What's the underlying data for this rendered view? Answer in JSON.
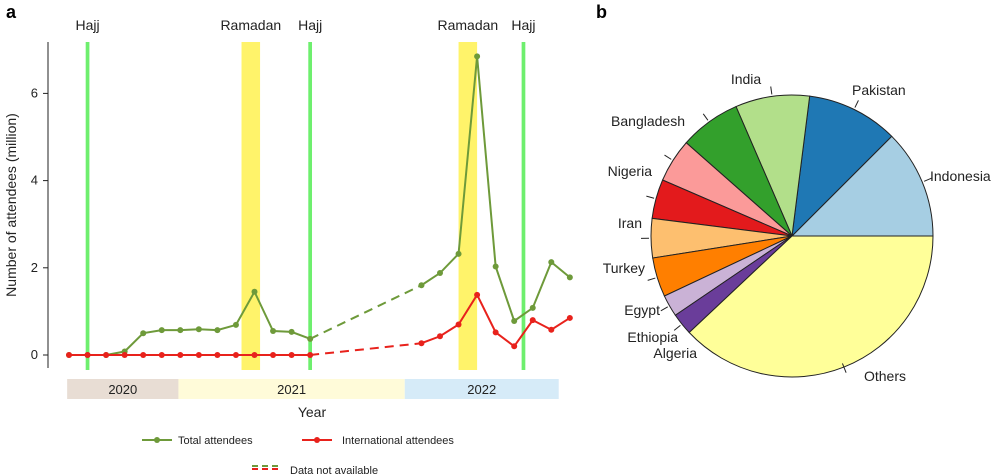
{
  "chart_data": [
    {
      "panel": "a",
      "type": "line",
      "ylabel": "Number of attendees (million)",
      "xlabel": "Year",
      "ylim": [
        0,
        7.3
      ],
      "yticks": [
        "0",
        "2",
        "4",
        "6"
      ],
      "ytick_values": [
        0,
        2,
        4,
        6
      ],
      "x_index_range": [
        0,
        26.5
      ],
      "years": [
        {
          "label": "2020",
          "start": -0.1,
          "end": 5.9,
          "color": "#e8ddd4"
        },
        {
          "label": "2021",
          "start": 5.9,
          "end": 18.1,
          "color": "#fffbd9"
        },
        {
          "label": "2022",
          "start": 18.1,
          "end": 26.4,
          "color": "#d6ebf8"
        }
      ],
      "events": [
        {
          "label": "Hajj",
          "type": "hajj",
          "start": 0.9,
          "end": 1.1
        },
        {
          "label": "Ramadan",
          "type": "ramadan",
          "start": 9.3,
          "end": 10.3
        },
        {
          "label": "Hajj",
          "type": "hajj",
          "start": 12.9,
          "end": 13.1
        },
        {
          "label": "Ramadan",
          "type": "ramadan",
          "start": 21.0,
          "end": 22.0
        },
        {
          "label": "Hajj",
          "type": "hajj",
          "start": 24.4,
          "end": 24.6
        }
      ],
      "series": [
        {
          "name": "Total attendees",
          "color": "#6e9a3a",
          "x": [
            0,
            1,
            2,
            3,
            4,
            5,
            6,
            7,
            8,
            9,
            10,
            11,
            12,
            13,
            19,
            20,
            21,
            22,
            23,
            24,
            25,
            26,
            27
          ],
          "values": [
            0.0,
            0.0,
            0.0,
            0.08,
            0.5,
            0.57,
            0.57,
            0.59,
            0.57,
            0.69,
            1.45,
            0.55,
            0.53,
            0.37,
            1.6,
            1.88,
            2.32,
            6.85,
            2.03,
            0.78,
            1.08,
            2.13,
            1.78
          ],
          "gap_after_index": 13
        },
        {
          "name": "International attendees",
          "color": "#e8221c",
          "x": [
            0,
            1,
            2,
            3,
            4,
            5,
            6,
            7,
            8,
            9,
            10,
            11,
            12,
            13,
            19,
            20,
            21,
            22,
            23,
            24,
            25,
            26,
            27
          ],
          "values": [
            0,
            0,
            0,
            0,
            0,
            0,
            0,
            0,
            0,
            0,
            0,
            0,
            0,
            0,
            0.27,
            0.43,
            0.7,
            1.38,
            0.52,
            0.2,
            0.8,
            0.58,
            0.85
          ],
          "gap_after_index": 13
        }
      ],
      "legend": {
        "total_label": "Total attendees",
        "international_label": "International attendees",
        "na_label": "Data not available"
      }
    },
    {
      "panel": "b",
      "type": "pie",
      "slices": [
        {
          "label": "Indonesia",
          "value": 12.5,
          "color": "#a6cee3"
        },
        {
          "label": "Pakistan",
          "value": 10.5,
          "color": "#1f78b4"
        },
        {
          "label": "India",
          "value": 8.5,
          "color": "#b2df8a"
        },
        {
          "label": "Bangladesh",
          "value": 7.0,
          "color": "#33a02c"
        },
        {
          "label": "Nigeria",
          "value": 5.0,
          "color": "#fb9a99"
        },
        {
          "label": "Iran",
          "value": 4.5,
          "color": "#e31a1c"
        },
        {
          "label": "Turkey",
          "value": 4.5,
          "color": "#fdbf6f"
        },
        {
          "label": "Egypt",
          "value": 4.5,
          "color": "#ff7f00"
        },
        {
          "label": "Ethiopia",
          "value": 2.5,
          "color": "#cab2d6"
        },
        {
          "label": "Algeria",
          "value": 2.5,
          "color": "#6a3d9a"
        },
        {
          "label": "Others",
          "value": 38.0,
          "color": "#ffff99"
        }
      ]
    }
  ],
  "panel_labels": {
    "a": "a",
    "b": "b"
  }
}
